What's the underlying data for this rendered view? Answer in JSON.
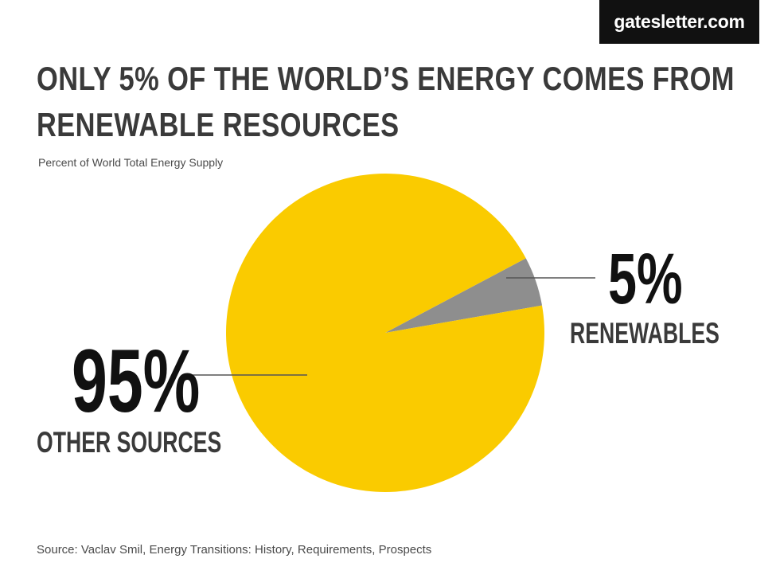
{
  "brand": "gatesletter.com",
  "colors": {
    "accent_yellow": "#FACB00",
    "renewables_gray": "#8E8E8E",
    "text_dark": "#3A3A3A",
    "brand_bg": "#111111"
  },
  "chart_data": {
    "type": "pie",
    "title": "ONLY 5% OF THE WORLD’S ENERGY COMES FROM RENEWABLE RESOURCES",
    "title_lines": [
      "ONLY 5% OF THE WORLD’S ENERGY COMES FROM",
      "RENEWABLE RESOURCES"
    ],
    "subtitle": "Percent of World Total Energy Supply",
    "slices": [
      {
        "label": "OTHER SOURCES",
        "value": 95,
        "value_label": "95%",
        "color": "#FACB00"
      },
      {
        "label": "RENEWABLES",
        "value": 5,
        "value_label": "5%",
        "color": "#8E8E8E"
      }
    ],
    "legend": "none"
  },
  "source": "Source: Vaclav Smil, Energy Transitions: History, Requirements, Prospects"
}
